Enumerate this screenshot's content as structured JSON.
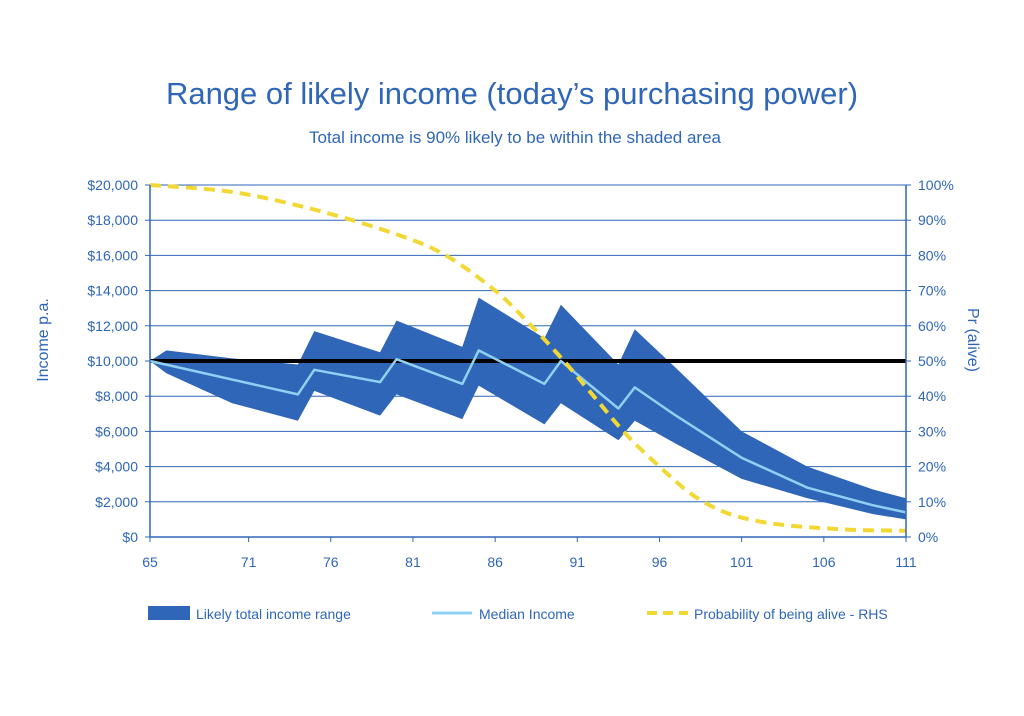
{
  "chart_data": {
    "type": "area",
    "title": "Range of likely income (today’s purchasing power)",
    "subtitle": "Total income is 90% likely to be within the shaded area",
    "ylabel": "Income p.a.",
    "y2label": "Pr (alive)",
    "xlim": [
      65,
      111
    ],
    "ylim": [
      0,
      20000
    ],
    "y2lim": [
      0,
      100
    ],
    "x_ticks": [
      65,
      71,
      76,
      81,
      86,
      91,
      96,
      101,
      106,
      111
    ],
    "y_ticks": [
      0,
      2000,
      4000,
      6000,
      8000,
      10000,
      12000,
      14000,
      16000,
      18000,
      20000
    ],
    "y_tick_labels": [
      "$0",
      "$2,000",
      "$4,000",
      "$6,000",
      "$8,000",
      "$10,000",
      "$12,000",
      "$14,000",
      "$16,000",
      "$18,000",
      "$20,000"
    ],
    "y2_ticks": [
      0,
      10,
      20,
      30,
      40,
      50,
      60,
      70,
      80,
      90,
      100
    ],
    "y2_tick_labels": [
      "0%",
      "10%",
      "20%",
      "30%",
      "40%",
      "50%",
      "60%",
      "70%",
      "80%",
      "90%",
      "100%"
    ],
    "grid": true,
    "legend_position": "bottom",
    "series": [
      {
        "name": "Likely total income range",
        "kind": "band",
        "color": "#2f66b8",
        "x": [
          65,
          66,
          70,
          74,
          75,
          79,
          80,
          84,
          85,
          89,
          90,
          93.5,
          94.5,
          97,
          101,
          105,
          109,
          111
        ],
        "upper": [
          10000,
          10600,
          10150,
          9800,
          11700,
          10500,
          12300,
          10800,
          13600,
          11300,
          13200,
          9800,
          11800,
          9600,
          6000,
          4000,
          2700,
          2200
        ],
        "lower": [
          10000,
          9300,
          7600,
          6600,
          8300,
          6900,
          8100,
          6700,
          8600,
          6400,
          7600,
          5500,
          6600,
          5300,
          3300,
          2200,
          1300,
          1000
        ]
      },
      {
        "name": "Median Income",
        "kind": "line",
        "color": "#8fd0f3",
        "x": [
          65,
          74,
          75,
          79,
          80,
          84,
          85,
          89,
          90,
          93.5,
          94.5,
          97,
          101,
          105,
          109,
          111
        ],
        "values": [
          10000,
          8100,
          9500,
          8800,
          10100,
          8700,
          10600,
          8700,
          10000,
          7300,
          8500,
          6900,
          4500,
          2800,
          1800,
          1400
        ]
      },
      {
        "name": "Probability of being alive - RHS",
        "kind": "dashed-line",
        "axis": "right",
        "color": "#f2d835",
        "x": [
          65,
          70,
          75,
          80,
          83,
          86,
          88,
          90,
          92,
          94,
          96,
          98,
          100,
          102,
          104,
          106,
          108,
          111
        ],
        "values": [
          100,
          98,
          93,
          86,
          80,
          70,
          61,
          51,
          40,
          29,
          20,
          12,
          7,
          4.5,
          3.2,
          2.5,
          2.0,
          1.8
        ]
      }
    ],
    "reference_line": {
      "axis": "left",
      "value": 10000,
      "color": "#000000"
    }
  }
}
